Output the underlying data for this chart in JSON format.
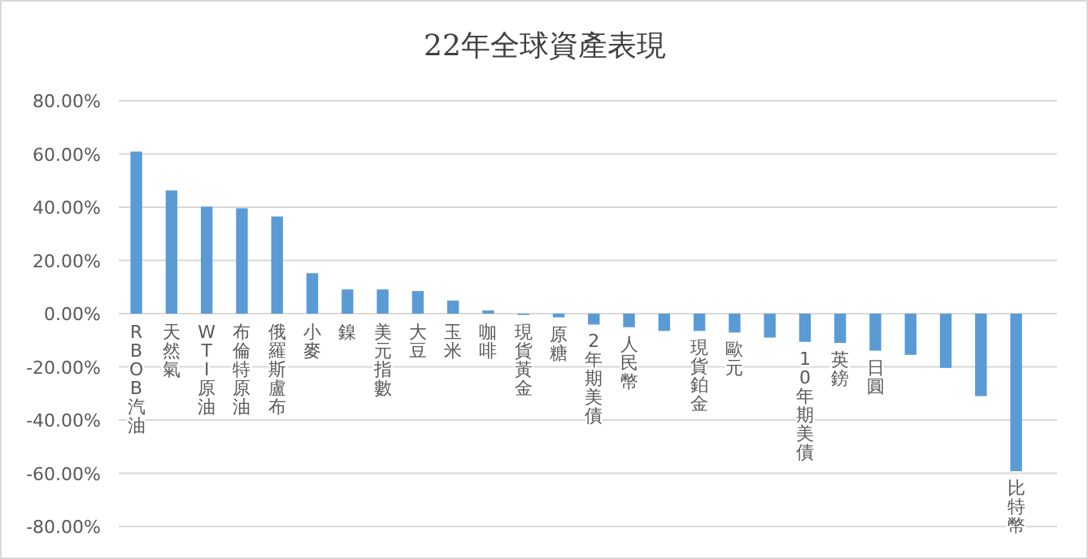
{
  "chart_data": {
    "type": "bar",
    "title": "22年全球資產表現",
    "categories": [
      "RBOB汽油",
      "天然氣",
      "WTI原油",
      "布倫特原油",
      "俄羅斯盧布",
      "小麥",
      "鎳",
      "美元指數",
      "大豆",
      "玉米",
      "咖啡",
      "現貨黃金",
      "原糖",
      "2年期美債",
      "人民幣",
      null,
      "現貨鉑金",
      "歐元",
      null,
      "10年期美債",
      "英鎊",
      "日圓",
      null,
      null,
      null,
      "比特幣"
    ],
    "values": [
      60.9,
      46.3,
      40.2,
      39.6,
      36.5,
      15.2,
      9.1,
      9.1,
      8.5,
      4.9,
      1.2,
      -0.5,
      -1.4,
      -4.1,
      -5.1,
      -6.5,
      -6.5,
      -7.1,
      -9.0,
      -10.6,
      -11.0,
      -13.9,
      -15.5,
      -20.4,
      -31.0,
      -59.2
    ],
    "color": "#5b9bd5",
    "ylim": [
      -80,
      80
    ],
    "yticks": [
      {
        "value": -80,
        "label": "-80.00%"
      },
      {
        "value": -60,
        "label": "-60.00%"
      },
      {
        "value": -40,
        "label": "-40.00%"
      },
      {
        "value": -20,
        "label": "-20.00%"
      },
      {
        "value": 0,
        "label": "0.00%"
      },
      {
        "value": 20,
        "label": "20.00%"
      },
      {
        "value": 40,
        "label": "40.00%"
      },
      {
        "value": 60,
        "label": "60.00%"
      },
      {
        "value": 80,
        "label": "80.00%"
      }
    ],
    "grid": "y",
    "legend": false
  }
}
